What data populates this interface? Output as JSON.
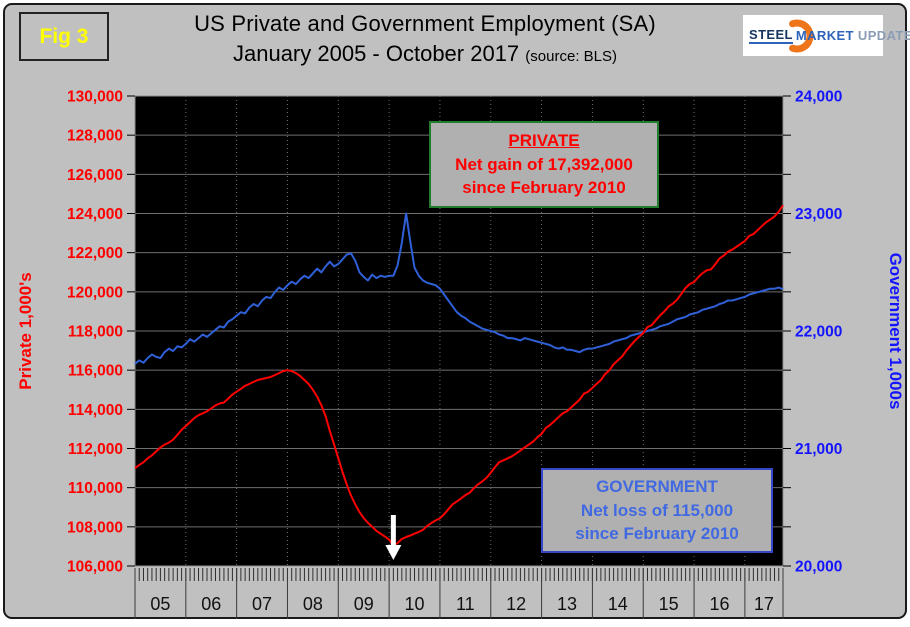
{
  "header": {
    "fig_label": "Fig 3",
    "title": "US Private and Government Employment (SA)",
    "subtitle": "January 2005 - October 2017",
    "source_note": "(source: BLS)",
    "logo": {
      "word1": "STEEL",
      "word2": "MARKET",
      "word3": "UPDATE",
      "crescent_color": "#ee751a"
    }
  },
  "chart_data": {
    "type": "line",
    "title": "US Private and Government Employment (SA)",
    "subtitle": "January 2005 - October 2017 (source: BLS)",
    "x_start": "2005-01",
    "x_end": "2017-10",
    "x_tick_labels": [
      "05",
      "06",
      "07",
      "08",
      "09",
      "10",
      "11",
      "12",
      "13",
      "14",
      "15",
      "16",
      "17"
    ],
    "plot_bg": "#000000",
    "grid": {
      "horizontal": "solid",
      "vertical": "dotted",
      "color": "#6f6f6f",
      "border": "#909090"
    },
    "left_axis": {
      "label": "Private 1,000's",
      "color": "#ff0000",
      "min": 106000,
      "max": 130000,
      "major_step": 2000,
      "tick_labels": [
        "130,000",
        "128,000",
        "126,000",
        "124,000",
        "122,000",
        "120,000",
        "118,000",
        "116,000",
        "114,000",
        "112,000",
        "110,000",
        "108,000",
        "106,000"
      ]
    },
    "right_axis": {
      "label": "Government 1,000s",
      "color": "#1414ff",
      "min": 20000,
      "max": 24000,
      "label_step": 1000,
      "minor_divisions": 12,
      "tick_labels": [
        "24,000",
        "23,000",
        "22,000",
        "21,000",
        "20,000"
      ]
    },
    "series": [
      {
        "name": "Government",
        "axis": "right",
        "color": "#3060d8",
        "values": [
          21720,
          21750,
          21730,
          21770,
          21800,
          21780,
          21770,
          21820,
          21850,
          21830,
          21870,
          21860,
          21890,
          21930,
          21910,
          21940,
          21970,
          21950,
          21980,
          22010,
          22040,
          22030,
          22080,
          22100,
          22130,
          22160,
          22150,
          22200,
          22230,
          22210,
          22260,
          22290,
          22280,
          22330,
          22370,
          22350,
          22390,
          22420,
          22400,
          22440,
          22470,
          22450,
          22490,
          22530,
          22500,
          22550,
          22590,
          22550,
          22570,
          22610,
          22650,
          22660,
          22600,
          22500,
          22460,
          22430,
          22480,
          22450,
          22470,
          22460,
          22470,
          22470,
          22560,
          22750,
          23000,
          22760,
          22540,
          22470,
          22430,
          22410,
          22400,
          22390,
          22360,
          22310,
          22260,
          22210,
          22160,
          22130,
          22110,
          22080,
          22060,
          22040,
          22020,
          22010,
          22000,
          21990,
          21970,
          21960,
          21940,
          21940,
          21930,
          21920,
          21940,
          21930,
          21920,
          21910,
          21900,
          21890,
          21880,
          21860,
          21850,
          21860,
          21840,
          21840,
          21830,
          21820,
          21840,
          21850,
          21850,
          21860,
          21870,
          21880,
          21890,
          21910,
          21920,
          21930,
          21940,
          21960,
          21970,
          21980,
          21990,
          22000,
          22010,
          22020,
          22040,
          22050,
          22060,
          22080,
          22100,
          22110,
          22120,
          22140,
          22150,
          22160,
          22180,
          22190,
          22200,
          22210,
          22230,
          22240,
          22260,
          22260,
          22270,
          22280,
          22290,
          22310,
          22320,
          22330,
          22340,
          22350,
          22360,
          22360,
          22370,
          22355
        ]
      },
      {
        "name": "Private",
        "axis": "left",
        "color": "#ff0000",
        "values": [
          111000,
          111150,
          111300,
          111500,
          111650,
          111850,
          112050,
          112200,
          112300,
          112450,
          112700,
          112950,
          113150,
          113350,
          113550,
          113700,
          113800,
          113900,
          114050,
          114200,
          114300,
          114350,
          114550,
          114750,
          114900,
          115050,
          115200,
          115300,
          115400,
          115500,
          115550,
          115600,
          115650,
          115750,
          115850,
          115950,
          116000,
          115950,
          115850,
          115700,
          115500,
          115300,
          115000,
          114650,
          114200,
          113650,
          112900,
          112200,
          111500,
          110800,
          110150,
          109600,
          109150,
          108750,
          108450,
          108200,
          108000,
          107800,
          107650,
          107500,
          107350,
          107030,
          107180,
          107380,
          107480,
          107560,
          107650,
          107740,
          107850,
          108050,
          108200,
          108330,
          108430,
          108650,
          108900,
          109150,
          109300,
          109450,
          109620,
          109740,
          109970,
          110170,
          110320,
          110500,
          110770,
          111050,
          111300,
          111400,
          111500,
          111600,
          111750,
          111900,
          112050,
          112200,
          112350,
          112570,
          112750,
          113050,
          113200,
          113400,
          113600,
          113800,
          113900,
          114100,
          114300,
          114500,
          114800,
          114900,
          115100,
          115300,
          115500,
          115800,
          116000,
          116300,
          116500,
          116700,
          117000,
          117250,
          117500,
          117700,
          117900,
          118200,
          118300,
          118550,
          118800,
          119000,
          119250,
          119400,
          119600,
          119900,
          120200,
          120400,
          120500,
          120750,
          120950,
          121100,
          121150,
          121400,
          121700,
          121850,
          122050,
          122150,
          122300,
          122450,
          122600,
          122850,
          122950,
          123150,
          123350,
          123550,
          123700,
          123850,
          124100,
          124420
        ]
      }
    ],
    "annotations": {
      "private_box": {
        "title": "PRIVATE",
        "line2": "Net gain of 17,392,000",
        "line3": "since February 2010",
        "text_color": "#ff0000",
        "border_color": "#1f7d2c"
      },
      "government_box": {
        "title": "GOVERNMENT",
        "line2": "Net loss of 115,000",
        "line3": "since February 2010",
        "text_color": "#4169e1",
        "border_color": "#3646c8"
      },
      "arrow": {
        "month": "2010-02",
        "direction": "down",
        "color": "#ffffff"
      }
    }
  }
}
